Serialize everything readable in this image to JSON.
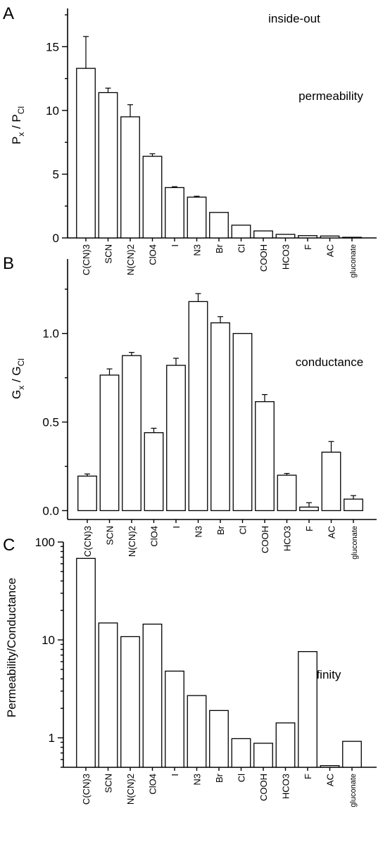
{
  "chart_data": [
    {
      "panel": "A",
      "type": "bar",
      "title": "",
      "annotations": [
        "inside-out",
        "permeability"
      ],
      "ylabel": {
        "main": "P",
        "sub1": "x",
        "mid": " / P",
        "sub2": "Cl"
      },
      "xlabel": "",
      "categories": [
        "C(CN)3",
        "SCN",
        "N(CN)2",
        "ClO4",
        "I",
        "N3",
        "Br",
        "Cl",
        "COOH",
        "HCO3",
        "F",
        "AC",
        "gluconate"
      ],
      "values": [
        13.3,
        11.4,
        9.5,
        6.4,
        3.95,
        3.2,
        2.0,
        1.0,
        0.55,
        0.28,
        0.18,
        0.15,
        0.05
      ],
      "errors": [
        2.5,
        0.35,
        0.95,
        0.2,
        0.07,
        0.07,
        0,
        0,
        0,
        0,
        0,
        0,
        0
      ],
      "ylim": [
        0,
        18
      ],
      "yticks": [
        0,
        5,
        10,
        15
      ],
      "ytick_labels": [
        "0",
        "5",
        "10",
        "15"
      ],
      "yscale": "linear"
    },
    {
      "panel": "B",
      "type": "bar",
      "title": "",
      "annotations": [
        "conductance"
      ],
      "ylabel": {
        "main": "G",
        "sub1": "x",
        "mid": " / G",
        "sub2": "Cl"
      },
      "xlabel": "",
      "categories": [
        "C(CN)3",
        "SCN",
        "N(CN)2",
        "ClO4",
        "I",
        "N3",
        "Br",
        "Cl",
        "COOH",
        "HCO3",
        "F",
        "AC",
        "gluconate"
      ],
      "values": [
        0.195,
        0.765,
        0.875,
        0.44,
        0.82,
        1.18,
        1.06,
        1.0,
        0.615,
        0.2,
        0.02,
        0.33,
        0.065
      ],
      "errors": [
        0.012,
        0.035,
        0.018,
        0.025,
        0.04,
        0.045,
        0.035,
        0,
        0.04,
        0.01,
        0.025,
        0.06,
        0.02
      ],
      "ylim": [
        -0.05,
        1.42
      ],
      "yticks": [
        0.0,
        0.5,
        1.0
      ],
      "ytick_labels": [
        "0.0",
        "0.5",
        "1.0"
      ],
      "yscale": "linear"
    },
    {
      "panel": "C",
      "type": "bar",
      "title": "",
      "annotations": [
        "affinity"
      ],
      "ylabel": {
        "main": "Permeability/Conductance"
      },
      "xlabel": "",
      "categories": [
        "C(CN)3",
        "SCN",
        "N(CN)2",
        "ClO4",
        "I",
        "N3",
        "Br",
        "Cl",
        "COOH",
        "HCO3",
        "F",
        "AC",
        "gluconate"
      ],
      "values": [
        68,
        14.9,
        10.8,
        14.5,
        4.8,
        2.7,
        1.9,
        0.98,
        0.88,
        1.42,
        7.6,
        0.52,
        0.92
      ],
      "errors": [
        0,
        0,
        0,
        0,
        0,
        0,
        0,
        0,
        0,
        0,
        0,
        0,
        0
      ],
      "ylim": [
        0.5,
        100
      ],
      "yticks": [
        1,
        10,
        100
      ],
      "ytick_labels": [
        "1",
        "10",
        "100"
      ],
      "yscale": "log"
    }
  ]
}
